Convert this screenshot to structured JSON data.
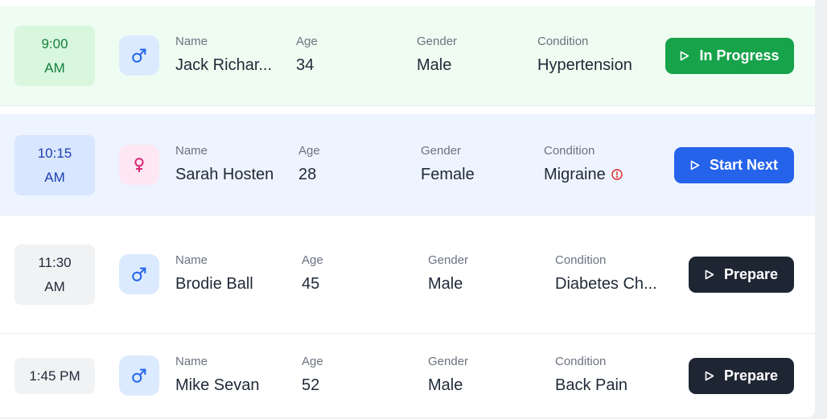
{
  "appointments": [
    {
      "time_line1": "9:00",
      "time_line2": "AM",
      "gender_icon": "male-icon",
      "labels": {
        "name": "Name",
        "age": "Age",
        "gender": "Gender",
        "condition": "Condition"
      },
      "name": "Jack Richar...",
      "age": "34",
      "gender": "Male",
      "condition": "Hypertension",
      "action": "In Progress",
      "status_color": "#16a34a"
    },
    {
      "time_line1": "10:15",
      "time_line2": "AM",
      "gender_icon": "female-icon",
      "labels": {
        "name": "Name",
        "age": "Age",
        "gender": "Gender",
        "condition": "Condition"
      },
      "name": "Sarah Hosten",
      "age": "28",
      "gender": "Female",
      "condition": "Migraine",
      "condition_icon": "alert-circle-icon",
      "action": "Start Next",
      "status_color": "#2563eb"
    },
    {
      "time_line1": "11:30",
      "time_line2": "AM",
      "gender_icon": "male-icon",
      "labels": {
        "name": "Name",
        "age": "Age",
        "gender": "Gender",
        "condition": "Condition"
      },
      "name": "Brodie Ball",
      "age": "45",
      "gender": "Male",
      "condition": "Diabetes Ch...",
      "action": "Prepare",
      "status_color": "#1e2634"
    },
    {
      "time_line1": "1:45 PM",
      "gender_icon": "male-icon",
      "labels": {
        "name": "Name",
        "age": "Age",
        "gender": "Gender",
        "condition": "Condition"
      },
      "name": "Mike Sevan",
      "age": "52",
      "gender": "Male",
      "condition": "Back Pain",
      "action": "Prepare",
      "status_color": "#1e2634"
    }
  ]
}
